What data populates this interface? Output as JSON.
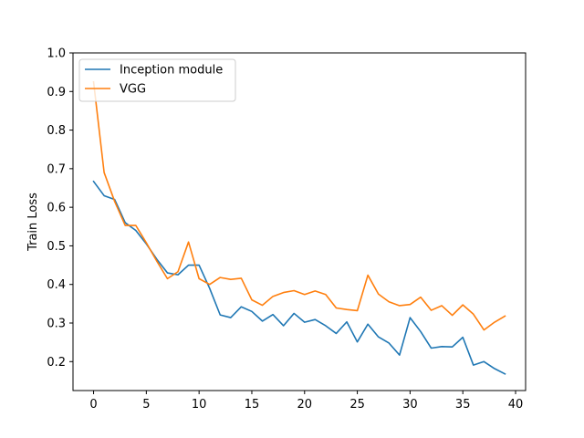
{
  "chart_data": {
    "type": "line",
    "title": "",
    "xlabel": "",
    "ylabel": "Train Loss",
    "xlim": [
      -1.95,
      40.95
    ],
    "ylim": [
      0.125,
      1.0
    ],
    "xticks": [
      0,
      5,
      10,
      15,
      20,
      25,
      30,
      35,
      40
    ],
    "yticks": [
      0.2,
      0.3,
      0.4,
      0.5,
      0.6,
      0.7,
      0.8,
      0.9,
      1.0
    ],
    "xtick_labels": [
      "0",
      "5",
      "10",
      "15",
      "20",
      "25",
      "30",
      "35",
      "40"
    ],
    "ytick_labels": [
      "0.2",
      "0.3",
      "0.4",
      "0.5",
      "0.6",
      "0.7",
      "0.8",
      "0.9",
      "1.0"
    ],
    "grid": false,
    "legend_position": "top-left",
    "x": [
      0,
      1,
      2,
      3,
      4,
      5,
      6,
      7,
      8,
      9,
      10,
      11,
      12,
      13,
      14,
      15,
      16,
      17,
      18,
      19,
      20,
      21,
      22,
      23,
      24,
      25,
      26,
      27,
      28,
      29,
      30,
      31,
      32,
      33,
      34,
      35,
      36,
      37,
      38,
      39
    ],
    "series": [
      {
        "name": "Inception module",
        "color": "#1f77b4",
        "values": [
          0.667,
          0.63,
          0.62,
          0.56,
          0.54,
          0.505,
          0.465,
          0.43,
          0.425,
          0.45,
          0.45,
          0.39,
          0.321,
          0.314,
          0.342,
          0.33,
          0.305,
          0.322,
          0.293,
          0.325,
          0.302,
          0.309,
          0.293,
          0.273,
          0.303,
          0.251,
          0.297,
          0.264,
          0.248,
          0.217,
          0.314,
          0.278,
          0.235,
          0.239,
          0.238,
          0.263,
          0.191,
          0.2,
          0.182,
          0.168
        ]
      },
      {
        "name": "VGG",
        "color": "#ff7f0e",
        "values": [
          0.925,
          0.69,
          0.615,
          0.553,
          0.553,
          0.508,
          0.46,
          0.415,
          0.433,
          0.51,
          0.415,
          0.4,
          0.418,
          0.413,
          0.416,
          0.36,
          0.346,
          0.369,
          0.379,
          0.384,
          0.374,
          0.383,
          0.374,
          0.339,
          0.335,
          0.332,
          0.424,
          0.375,
          0.355,
          0.345,
          0.348,
          0.367,
          0.333,
          0.345,
          0.32,
          0.347,
          0.323,
          0.282,
          0.302,
          0.318
        ]
      }
    ]
  }
}
